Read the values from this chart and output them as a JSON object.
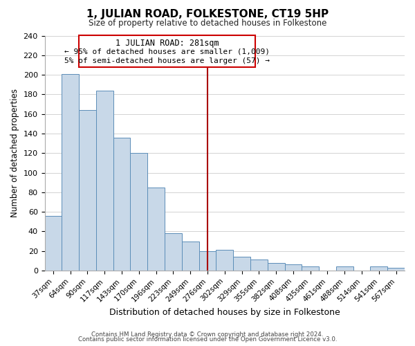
{
  "title": "1, JULIAN ROAD, FOLKESTONE, CT19 5HP",
  "subtitle": "Size of property relative to detached houses in Folkestone",
  "xlabel": "Distribution of detached houses by size in Folkestone",
  "ylabel": "Number of detached properties",
  "bin_labels": [
    "37sqm",
    "64sqm",
    "90sqm",
    "117sqm",
    "143sqm",
    "170sqm",
    "196sqm",
    "223sqm",
    "249sqm",
    "276sqm",
    "302sqm",
    "329sqm",
    "355sqm",
    "382sqm",
    "408sqm",
    "435sqm",
    "461sqm",
    "488sqm",
    "514sqm",
    "541sqm",
    "567sqm"
  ],
  "bar_heights": [
    56,
    201,
    164,
    184,
    136,
    120,
    85,
    38,
    30,
    20,
    21,
    14,
    11,
    8,
    6,
    4,
    0,
    4,
    0,
    4,
    3
  ],
  "bar_color": "#c8d8e8",
  "bar_edge_color": "#5b8db8",
  "vline_x_index": 9,
  "vline_color": "#aa0000",
  "annotation_title": "1 JULIAN ROAD: 281sqm",
  "annotation_line1": "← 95% of detached houses are smaller (1,009)",
  "annotation_line2": "5% of semi-detached houses are larger (57) →",
  "annotation_box_color": "#ffffff",
  "annotation_box_edge": "#cc0000",
  "ylim_max": 240,
  "yticks": [
    0,
    20,
    40,
    60,
    80,
    100,
    120,
    140,
    160,
    180,
    200,
    220,
    240
  ],
  "footer_line1": "Contains HM Land Registry data © Crown copyright and database right 2024.",
  "footer_line2": "Contains public sector information licensed under the Open Government Licence v3.0.",
  "background_color": "#ffffff",
  "grid_color": "#cccccc"
}
